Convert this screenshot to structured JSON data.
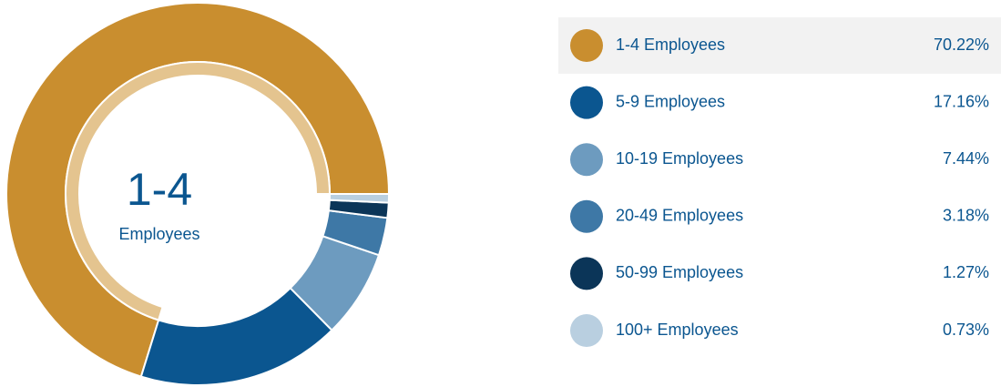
{
  "chart_data": {
    "type": "donut",
    "categories": [
      "1-4 Employees",
      "5-9 Employees",
      "10-19 Employees",
      "20-49 Employees",
      "50-99 Employees",
      "100+ Employees"
    ],
    "values": [
      70.22,
      17.16,
      7.44,
      3.18,
      1.27,
      0.73
    ],
    "value_labels": [
      "70.22%",
      "17.16%",
      "7.44%",
      "3.18%",
      "1.27%",
      "0.73%"
    ],
    "colors": [
      "#c98e2f",
      "#0b5690",
      "#6d9bbf",
      "#3e78a6",
      "#0b3558",
      "#b9cfe0"
    ],
    "center_label": {
      "value": "1-4",
      "caption": "Employees"
    },
    "legend": "right"
  }
}
